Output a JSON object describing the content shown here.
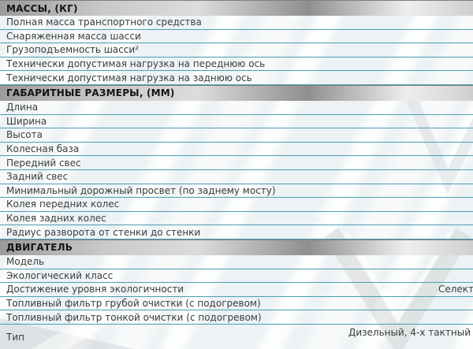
{
  "table": {
    "sections": [
      {
        "header": "МАССЫ, (КГ)",
        "rows": [
          {
            "label": "Полная масса транспортного средства",
            "value": ""
          },
          {
            "label": "Снаряженная масса шасси",
            "value": ""
          },
          {
            "label": "Грузоподъемность шасси²",
            "value": ""
          },
          {
            "label": "Технически допустимая нагрузка на переднюю ось",
            "value": ""
          },
          {
            "label": "Технически допустимая нагрузка на заднюю ось",
            "value": ""
          }
        ]
      },
      {
        "header": "ГАБАРИТНЫЕ РАЗМЕРЫ, (ММ)",
        "rows": [
          {
            "label": "Длина",
            "value": ""
          },
          {
            "label": "Ширина",
            "value": ""
          },
          {
            "label": "Высота",
            "value": ""
          },
          {
            "label": "Колесная база",
            "value": ""
          },
          {
            "label": "Передний свес",
            "value": ""
          },
          {
            "label": "Задний свес",
            "value": ""
          },
          {
            "label": "Минимальный дорожный просвет (по заднему мосту)",
            "value": ""
          },
          {
            "label": "Колея передних колес",
            "value": ""
          },
          {
            "label": "Колея задних колес",
            "value": ""
          },
          {
            "label": "Радиус разворота от стенки до стенки",
            "value": ""
          }
        ]
      },
      {
        "header": "ДВИГАТЕЛЬ",
        "rows": [
          {
            "label": "Модель",
            "value": ""
          },
          {
            "label": "Экологический класс",
            "value": ""
          },
          {
            "label": "Достижение уровня экологичности",
            "value": "Селект",
            "flush": true
          },
          {
            "label": "Топливный фильтр грубой очистки (с подогревом)",
            "value": ""
          },
          {
            "label": "Топливный фильтр тонкой очистки (с подогревом)",
            "value": ""
          },
          {
            "label": "Тип",
            "value": "Дизельный, 4-х тактный",
            "tall": true
          }
        ]
      }
    ]
  },
  "colors": {
    "separator_line": "#4a9fb5",
    "label_text": "#3c3c3c",
    "header_text": "#141414",
    "row_background": "#edf2f4",
    "header_gradient_dark": "#8f8f8f",
    "header_gradient_light": "#eeeeee"
  }
}
